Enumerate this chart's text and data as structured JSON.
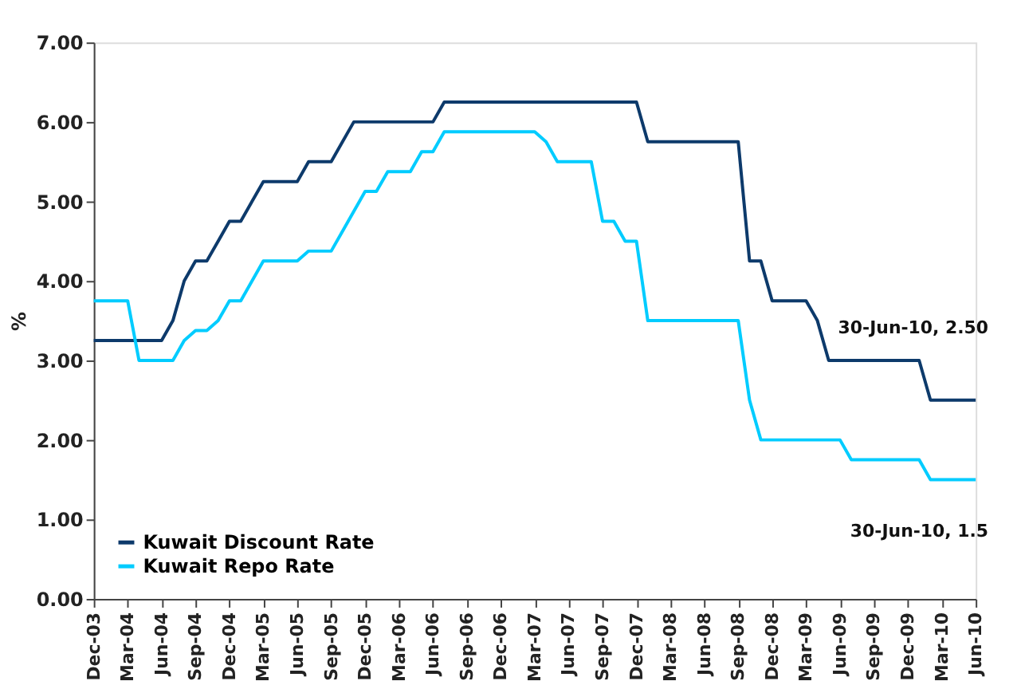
{
  "chart_data": {
    "type": "line",
    "ylabel": "%",
    "categories": [
      "Dec-03",
      null,
      null,
      "Mar-04",
      null,
      null,
      "Jun-04",
      null,
      null,
      "Sep-04",
      null,
      null,
      "Dec-04",
      null,
      null,
      "Mar-05",
      null,
      null,
      "Jun-05",
      null,
      null,
      "Sep-05",
      null,
      null,
      "Dec-05",
      null,
      null,
      "Mar-06",
      null,
      null,
      "Jun-06",
      null,
      null,
      "Sep-06",
      null,
      null,
      "Dec-06",
      null,
      null,
      "Mar-07",
      null,
      null,
      "Jun-07",
      null,
      null,
      "Sep-07",
      null,
      null,
      "Dec-07",
      null,
      null,
      "Mar-08",
      null,
      null,
      "Jun-08",
      null,
      null,
      "Sep-08",
      null,
      null,
      "Dec-08",
      null,
      null,
      "Mar-09",
      null,
      null,
      "Jun-09",
      null,
      null,
      "Sep-09",
      null,
      null,
      "Dec-09",
      null,
      null,
      "Mar-10",
      null,
      null,
      "Jun-10"
    ],
    "series": [
      {
        "name": "Kuwait Discount Rate",
        "color": "#0d3a6b",
        "values": [
          3.25,
          3.25,
          3.25,
          3.25,
          3.25,
          3.25,
          3.25,
          3.5,
          4.0,
          4.25,
          4.25,
          4.5,
          4.75,
          4.75,
          5.0,
          5.25,
          5.25,
          5.25,
          5.25,
          5.5,
          5.5,
          5.5,
          5.75,
          6.0,
          6.0,
          6.0,
          6.0,
          6.0,
          6.0,
          6.0,
          6.0,
          6.25,
          6.25,
          6.25,
          6.25,
          6.25,
          6.25,
          6.25,
          6.25,
          6.25,
          6.25,
          6.25,
          6.25,
          6.25,
          6.25,
          6.25,
          6.25,
          6.25,
          6.25,
          5.75,
          5.75,
          5.75,
          5.75,
          5.75,
          5.75,
          5.75,
          5.75,
          5.75,
          4.25,
          4.25,
          3.75,
          3.75,
          3.75,
          3.75,
          3.5,
          3.0,
          3.0,
          3.0,
          3.0,
          3.0,
          3.0,
          3.0,
          3.0,
          3.0,
          2.5,
          2.5,
          2.5,
          2.5,
          2.5
        ]
      },
      {
        "name": "Kuwait Repo Rate",
        "color": "#00ccff",
        "values": [
          3.75,
          3.75,
          3.75,
          3.75,
          3.0,
          3.0,
          3.0,
          3.0,
          3.25,
          3.375,
          3.375,
          3.5,
          3.75,
          3.75,
          4.0,
          4.25,
          4.25,
          4.25,
          4.25,
          4.375,
          4.375,
          4.375,
          4.625,
          4.875,
          5.125,
          5.125,
          5.375,
          5.375,
          5.375,
          5.625,
          5.625,
          5.875,
          5.875,
          5.875,
          5.875,
          5.875,
          5.875,
          5.875,
          5.875,
          5.875,
          5.75,
          5.5,
          5.5,
          5.5,
          5.5,
          4.75,
          4.75,
          4.5,
          4.5,
          3.5,
          3.5,
          3.5,
          3.5,
          3.5,
          3.5,
          3.5,
          3.5,
          3.5,
          2.5,
          2.0,
          2.0,
          2.0,
          2.0,
          2.0,
          2.0,
          2.0,
          2.0,
          1.75,
          1.75,
          1.75,
          1.75,
          1.75,
          1.75,
          1.75,
          1.5,
          1.5,
          1.5,
          1.5,
          1.5
        ]
      }
    ],
    "ylim": [
      0,
      7
    ],
    "yticks": [
      {
        "value": 0,
        "label": "0.00"
      },
      {
        "value": 1,
        "label": "1.00"
      },
      {
        "value": 2,
        "label": "2.00"
      },
      {
        "value": 3,
        "label": "3.00"
      },
      {
        "value": 4,
        "label": "4.00"
      },
      {
        "value": 5,
        "label": "5.00"
      },
      {
        "value": 6,
        "label": "6.00"
      },
      {
        "value": 7,
        "label": "7.00"
      }
    ],
    "annotations": [
      "30-Jun-10, 2.50",
      "30-Jun-10, 1.5"
    ],
    "legend": "bottom left",
    "grid": false,
    "marker": "none",
    "line_style": "solid"
  }
}
